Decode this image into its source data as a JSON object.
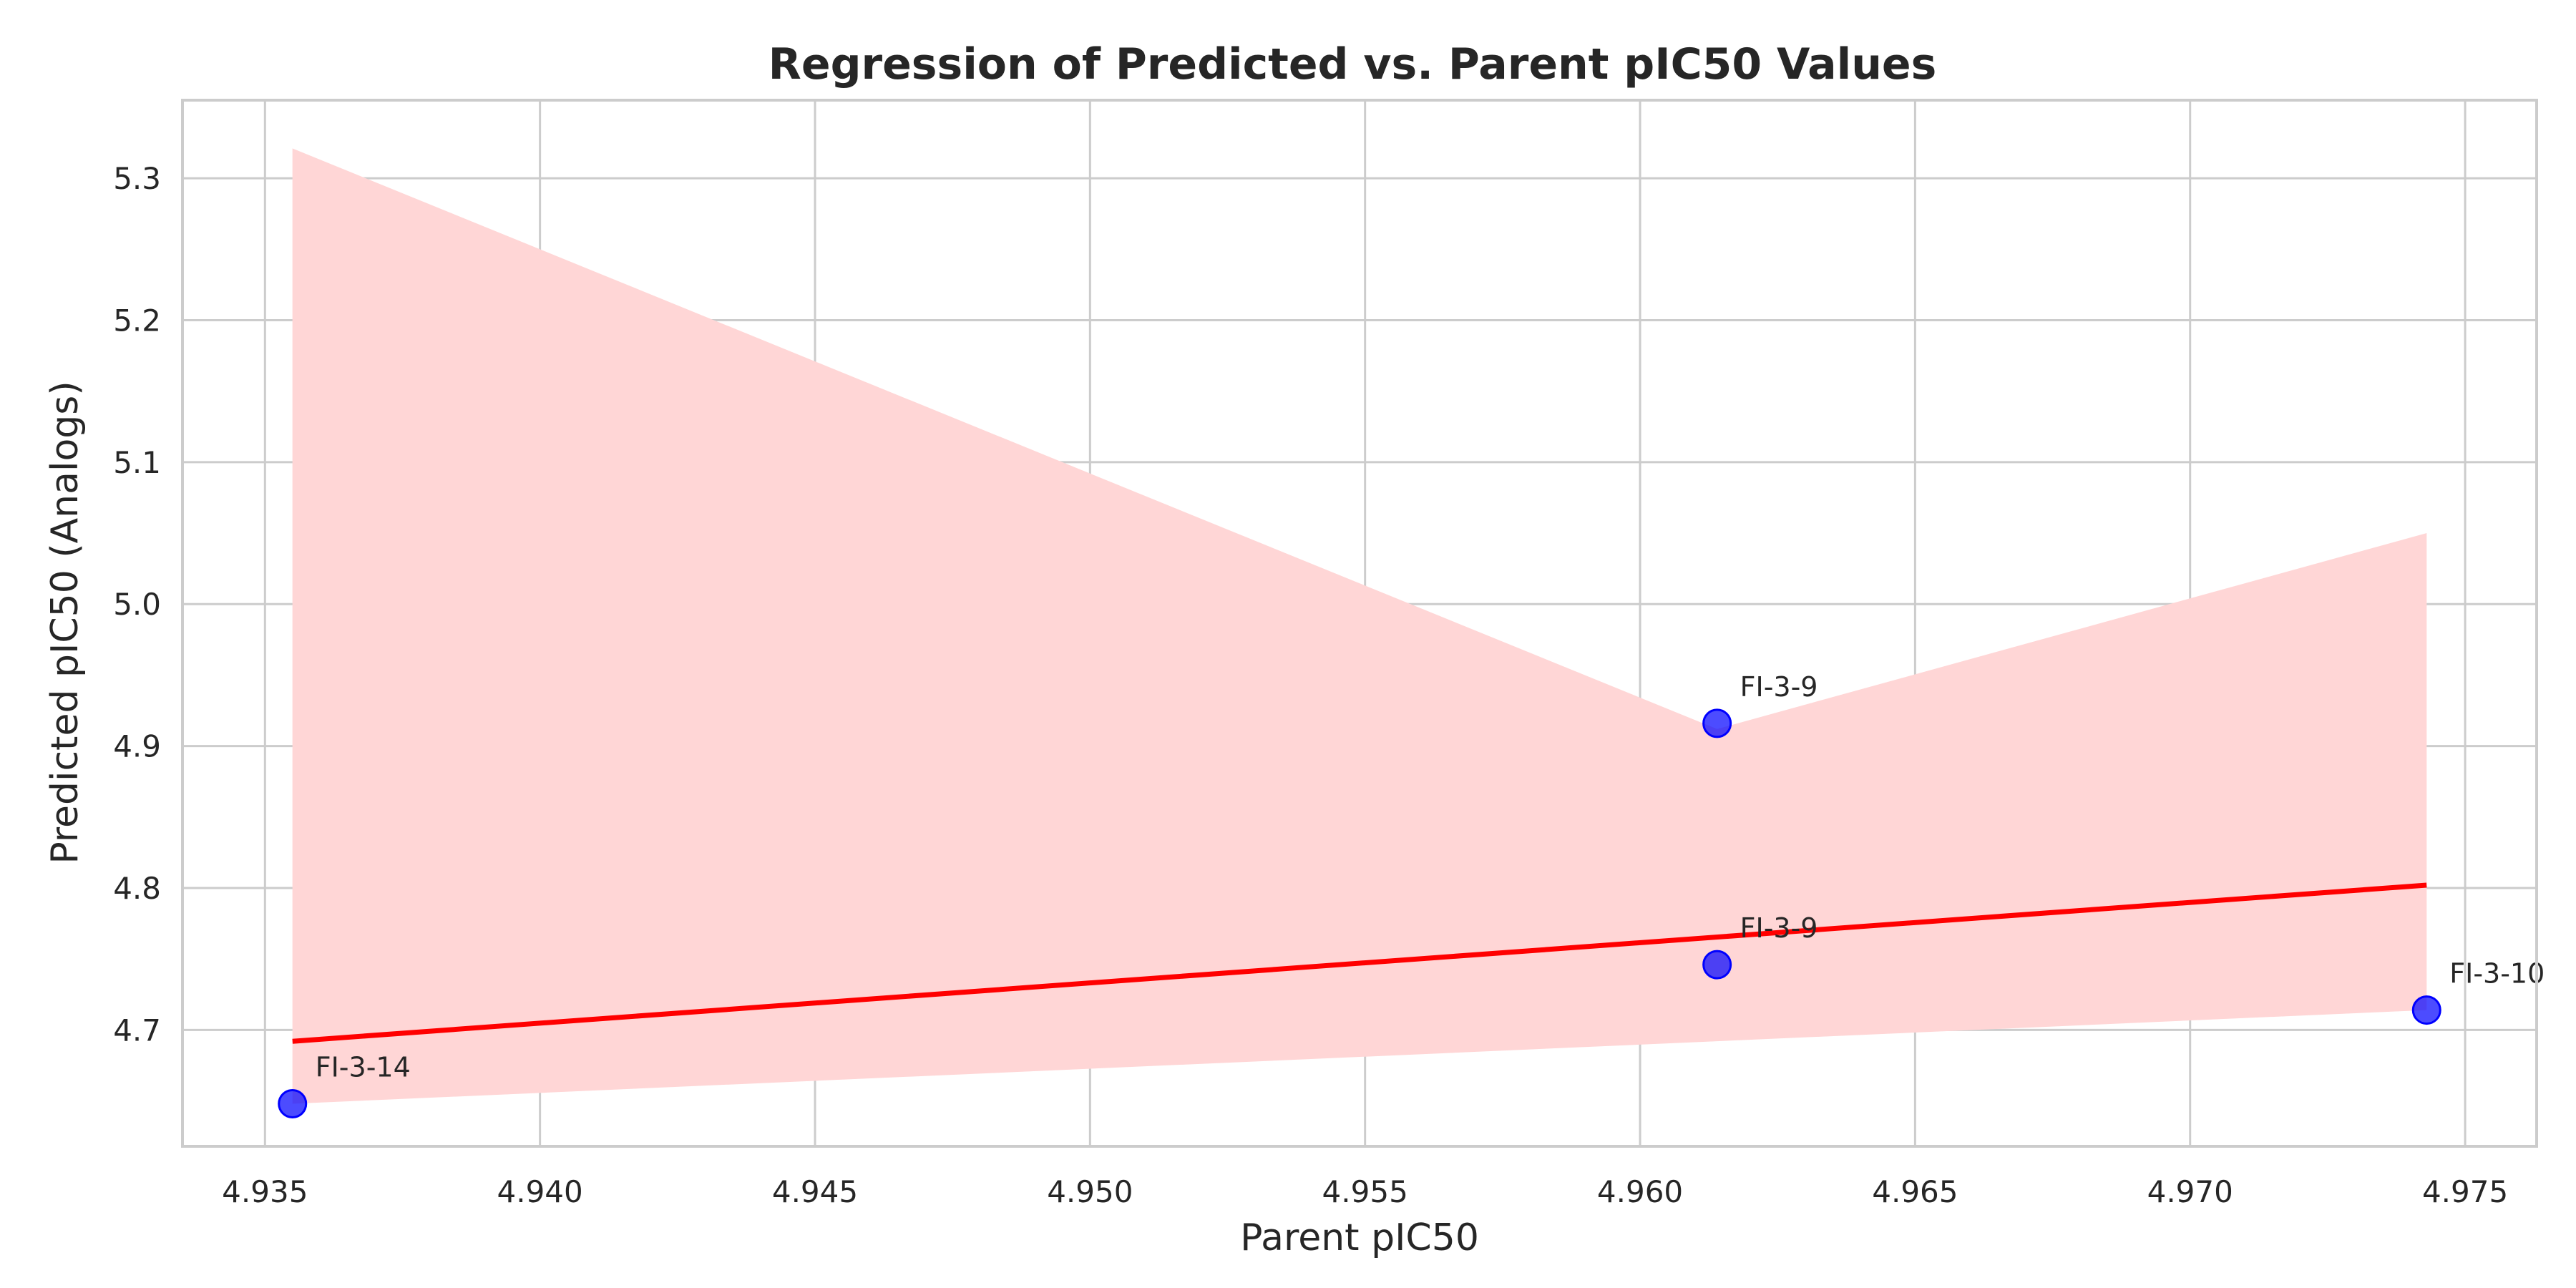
{
  "chart_data": {
    "type": "scatter",
    "title": "Regression of Predicted vs. Parent pIC50 Values",
    "xlabel": "Parent pIC50",
    "ylabel": "Predicted pIC50 (Analogs)",
    "xlim": [
      4.9335,
      4.9763
    ],
    "ylim": [
      4.618,
      5.355
    ],
    "x_ticks": [
      4.935,
      4.94,
      4.945,
      4.95,
      4.955,
      4.96,
      4.965,
      4.97,
      4.975
    ],
    "x_tick_labels": [
      "4.935",
      "4.940",
      "4.945",
      "4.950",
      "4.955",
      "4.960",
      "4.965",
      "4.970",
      "4.975"
    ],
    "y_ticks": [
      4.7,
      4.8,
      4.9,
      5.0,
      5.1,
      5.2,
      5.3
    ],
    "y_tick_labels": [
      "4.7",
      "4.8",
      "4.9",
      "5.0",
      "5.1",
      "5.2",
      "5.3"
    ],
    "grid": true,
    "points": [
      {
        "x": 4.9355,
        "y": 4.648,
        "label": "FI-3-14"
      },
      {
        "x": 4.9614,
        "y": 4.916,
        "label": "FI-3-9"
      },
      {
        "x": 4.9614,
        "y": 4.746,
        "label": "FI-3-9"
      },
      {
        "x": 4.9743,
        "y": 4.714,
        "label": "FI-3-10"
      }
    ],
    "regression_line": {
      "x": [
        4.9355,
        4.9743
      ],
      "y": [
        4.692,
        4.802
      ]
    },
    "confidence_band": {
      "upper": [
        [
          4.9355,
          5.321
        ],
        [
          4.9614,
          4.912
        ],
        [
          4.9743,
          5.05
        ]
      ],
      "lower": [
        [
          4.9355,
          4.648
        ],
        [
          4.9743,
          4.714
        ]
      ]
    },
    "colors": {
      "points": "#0000ff",
      "regression_line": "#ff0000",
      "confidence_band": "#ffd6d6"
    }
  }
}
